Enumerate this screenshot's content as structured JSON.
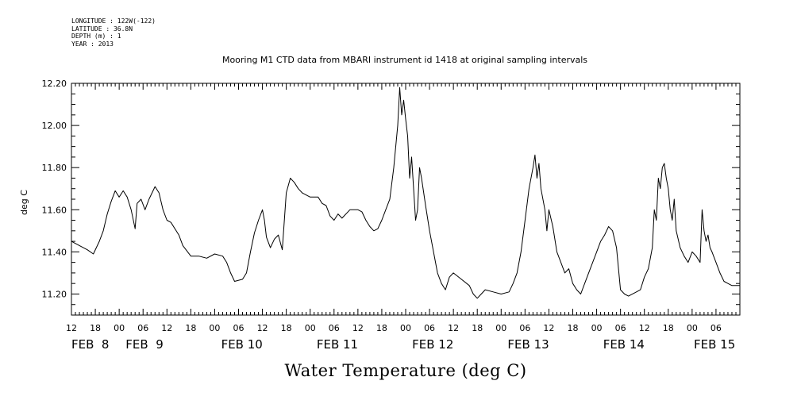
{
  "meta": {
    "longitude": "LONGITUDE : 122W(-122)",
    "latitude": "LATITUDE : 36.8N",
    "depth": "DEPTH (m) : 1",
    "year": "YEAR : 2013"
  },
  "chart_data": {
    "type": "line",
    "title": "Mooring M1 CTD data from MBARI instrument id 1418 at original sampling intervals",
    "xlabel": "Water Temperature (deg C)",
    "ylabel": "deg C",
    "ylim": [
      11.1,
      12.2
    ],
    "yticks": [
      "11.20",
      "11.40",
      "11.60",
      "11.80",
      "12.00",
      "12.20"
    ],
    "xlim_hours": [
      0,
      168
    ],
    "x_start": "FEB 8 12:00",
    "x_end": "FEB 15 12:00",
    "hour_tick_labels": [
      "12",
      "18",
      "00",
      "06",
      "12",
      "18",
      "00",
      "06",
      "12",
      "18",
      "00",
      "06",
      "12",
      "18",
      "00",
      "06",
      "12",
      "18",
      "00",
      "06",
      "12",
      "18",
      "00",
      "06",
      "12",
      "18",
      "00",
      "06"
    ],
    "date_labels": [
      "FEB  8",
      "FEB  9",
      "FEB 10",
      "FEB 11",
      "FEB 12",
      "FEB 13",
      "FEB 14",
      "FEB 15"
    ],
    "series": [
      {
        "points": [
          [
            0,
            11.45
          ],
          [
            2,
            11.43
          ],
          [
            4,
            11.41
          ],
          [
            5.5,
            11.39
          ],
          [
            7,
            11.45
          ],
          [
            8,
            11.5
          ],
          [
            9,
            11.58
          ],
          [
            10,
            11.64
          ],
          [
            11,
            11.69
          ],
          [
            12,
            11.66
          ],
          [
            13,
            11.69
          ],
          [
            14,
            11.66
          ],
          [
            15,
            11.6
          ],
          [
            16,
            11.51
          ],
          [
            16.5,
            11.63
          ],
          [
            17.5,
            11.65
          ],
          [
            18.5,
            11.6
          ],
          [
            19.5,
            11.65
          ],
          [
            21,
            11.71
          ],
          [
            22,
            11.68
          ],
          [
            23,
            11.6
          ],
          [
            24,
            11.55
          ],
          [
            25,
            11.54
          ],
          [
            27,
            11.48
          ],
          [
            28,
            11.43
          ],
          [
            30,
            11.38
          ],
          [
            32,
            11.38
          ],
          [
            34,
            11.37
          ],
          [
            36,
            11.39
          ],
          [
            38,
            11.38
          ],
          [
            39,
            11.35
          ],
          [
            40,
            11.3
          ],
          [
            41,
            11.26
          ],
          [
            43,
            11.27
          ],
          [
            44,
            11.3
          ],
          [
            45,
            11.4
          ],
          [
            46,
            11.49
          ],
          [
            47,
            11.55
          ],
          [
            48,
            11.6
          ],
          [
            48.5,
            11.55
          ],
          [
            49,
            11.47
          ],
          [
            50,
            11.42
          ],
          [
            51,
            11.46
          ],
          [
            52,
            11.48
          ],
          [
            53,
            11.41
          ],
          [
            54,
            11.68
          ],
          [
            55,
            11.75
          ],
          [
            56,
            11.73
          ],
          [
            57,
            11.7
          ],
          [
            58,
            11.68
          ],
          [
            59,
            11.67
          ],
          [
            60,
            11.66
          ],
          [
            62,
            11.66
          ],
          [
            63,
            11.63
          ],
          [
            64,
            11.62
          ],
          [
            65,
            11.57
          ],
          [
            66,
            11.55
          ],
          [
            67,
            11.58
          ],
          [
            68,
            11.56
          ],
          [
            70,
            11.6
          ],
          [
            72,
            11.6
          ],
          [
            73,
            11.59
          ],
          [
            74,
            11.55
          ],
          [
            75,
            11.52
          ],
          [
            76,
            11.5
          ],
          [
            77,
            11.51
          ],
          [
            78,
            11.55
          ],
          [
            79,
            11.6
          ],
          [
            80,
            11.65
          ],
          [
            81,
            11.8
          ],
          [
            82,
            12.0
          ],
          [
            82.5,
            12.18
          ],
          [
            83,
            12.05
          ],
          [
            83.5,
            12.12
          ],
          [
            84,
            12.03
          ],
          [
            84.5,
            11.95
          ],
          [
            85,
            11.75
          ],
          [
            85.5,
            11.85
          ],
          [
            86,
            11.7
          ],
          [
            86.5,
            11.55
          ],
          [
            87,
            11.6
          ],
          [
            87.5,
            11.8
          ],
          [
            88,
            11.75
          ],
          [
            89,
            11.62
          ],
          [
            90,
            11.5
          ],
          [
            91,
            11.4
          ],
          [
            92,
            11.3
          ],
          [
            93,
            11.25
          ],
          [
            94,
            11.22
          ],
          [
            95,
            11.28
          ],
          [
            96,
            11.3
          ],
          [
            98,
            11.27
          ],
          [
            100,
            11.24
          ],
          [
            101,
            11.2
          ],
          [
            102,
            11.18
          ],
          [
            103,
            11.2
          ],
          [
            104,
            11.22
          ],
          [
            106,
            11.21
          ],
          [
            108,
            11.2
          ],
          [
            110,
            11.21
          ],
          [
            111,
            11.25
          ],
          [
            112,
            11.3
          ],
          [
            113,
            11.4
          ],
          [
            114,
            11.55
          ],
          [
            115,
            11.7
          ],
          [
            116,
            11.8
          ],
          [
            116.5,
            11.86
          ],
          [
            117,
            11.75
          ],
          [
            117.5,
            11.82
          ],
          [
            118,
            11.7
          ],
          [
            119,
            11.6
          ],
          [
            119.5,
            11.5
          ],
          [
            120,
            11.6
          ],
          [
            121,
            11.52
          ],
          [
            122,
            11.4
          ],
          [
            123,
            11.35
          ],
          [
            124,
            11.3
          ],
          [
            125,
            11.32
          ],
          [
            126,
            11.25
          ],
          [
            127,
            11.22
          ],
          [
            128,
            11.2
          ],
          [
            129,
            11.25
          ],
          [
            130,
            11.3
          ],
          [
            131,
            11.35
          ],
          [
            132,
            11.4
          ],
          [
            133,
            11.45
          ],
          [
            134,
            11.48
          ],
          [
            135,
            11.52
          ],
          [
            136,
            11.5
          ],
          [
            137,
            11.42
          ],
          [
            137.5,
            11.32
          ],
          [
            138,
            11.22
          ],
          [
            139,
            11.2
          ],
          [
            140,
            11.19
          ],
          [
            142,
            11.21
          ],
          [
            143,
            11.22
          ],
          [
            144,
            11.28
          ],
          [
            145,
            11.32
          ],
          [
            146,
            11.42
          ],
          [
            146.5,
            11.6
          ],
          [
            147,
            11.55
          ],
          [
            147.5,
            11.75
          ],
          [
            148,
            11.7
          ],
          [
            148.5,
            11.8
          ],
          [
            149,
            11.82
          ],
          [
            149.5,
            11.75
          ],
          [
            150,
            11.7
          ],
          [
            150.5,
            11.6
          ],
          [
            151,
            11.55
          ],
          [
            151.5,
            11.65
          ],
          [
            152,
            11.5
          ],
          [
            153,
            11.42
          ],
          [
            154,
            11.38
          ],
          [
            155,
            11.35
          ],
          [
            156,
            11.4
          ],
          [
            157,
            11.38
          ],
          [
            158,
            11.35
          ],
          [
            158.5,
            11.6
          ],
          [
            159,
            11.5
          ],
          [
            159.5,
            11.45
          ],
          [
            160,
            11.48
          ],
          [
            160.5,
            11.42
          ],
          [
            161,
            11.4
          ],
          [
            162,
            11.35
          ],
          [
            163,
            11.3
          ],
          [
            164,
            11.26
          ],
          [
            165,
            11.25
          ],
          [
            166,
            11.24
          ],
          [
            168,
            11.24
          ]
        ]
      }
    ]
  }
}
